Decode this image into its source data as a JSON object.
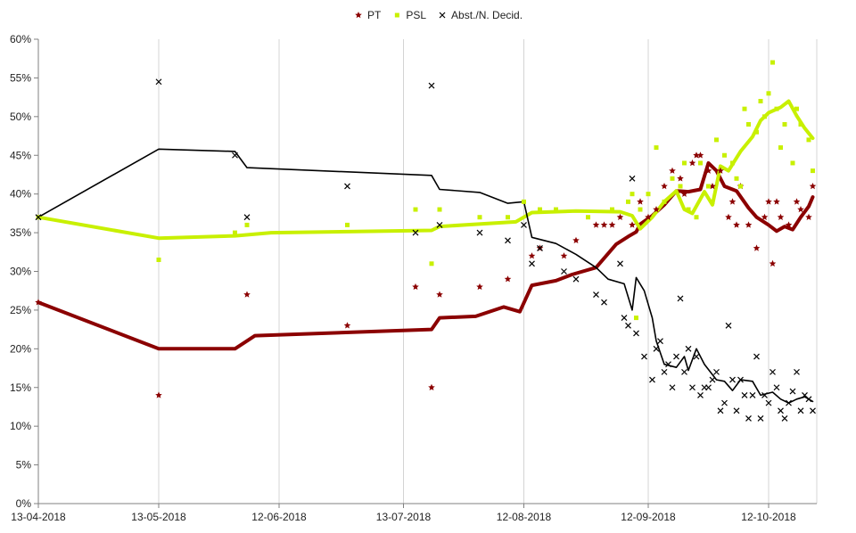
{
  "chart_data": {
    "type": "line",
    "x_axis": {
      "type": "date",
      "range": [
        "2018-04-13",
        "2018-10-24"
      ],
      "ticks": [
        {
          "date": "2018-04-13",
          "label": "13-04-2018"
        },
        {
          "date": "2018-05-13",
          "label": "13-05-2018"
        },
        {
          "date": "2018-06-12",
          "label": "12-06-2018"
        },
        {
          "date": "2018-07-13",
          "label": "13-07-2018"
        },
        {
          "date": "2018-08-12",
          "label": "12-08-2018"
        },
        {
          "date": "2018-09-12",
          "label": "12-09-2018"
        },
        {
          "date": "2018-10-12",
          "label": "12-10-2018"
        }
      ]
    },
    "y_axis": {
      "range": [
        0,
        60
      ],
      "ticks": [
        0,
        5,
        10,
        15,
        20,
        25,
        30,
        35,
        40,
        45,
        50,
        55,
        60
      ],
      "tick_labels": [
        "0%",
        "5%",
        "10%",
        "15%",
        "20%",
        "25%",
        "30%",
        "35%",
        "40%",
        "45%",
        "50%",
        "55%",
        "60%"
      ]
    },
    "grid": "vertical",
    "legend": "top-center",
    "series": [
      {
        "name": "PT",
        "color": "#8b0000",
        "marker": "star",
        "trend": [
          [
            "2018-04-13",
            26
          ],
          [
            "2018-05-13",
            20
          ],
          [
            "2018-06-01",
            20
          ],
          [
            "2018-06-06",
            21.7
          ],
          [
            "2018-07-20",
            22.5
          ],
          [
            "2018-07-22",
            24
          ],
          [
            "2018-07-31",
            24.2
          ],
          [
            "2018-08-07",
            25.4
          ],
          [
            "2018-08-11",
            24.8
          ],
          [
            "2018-08-14",
            28.2
          ],
          [
            "2018-08-20",
            28.8
          ],
          [
            "2018-08-24",
            29.6
          ],
          [
            "2018-08-30",
            30.5
          ],
          [
            "2018-09-04",
            33.5
          ],
          [
            "2018-09-07",
            34.5
          ],
          [
            "2018-09-09",
            35.1
          ],
          [
            "2018-09-10",
            36.1
          ],
          [
            "2018-09-13",
            37.2
          ],
          [
            "2018-09-16",
            38.6
          ],
          [
            "2018-09-19",
            40.4
          ],
          [
            "2018-09-22",
            40.3
          ],
          [
            "2018-09-25",
            40.6
          ],
          [
            "2018-09-27",
            44.0
          ],
          [
            "2018-09-29",
            43.0
          ],
          [
            "2018-10-01",
            41.0
          ],
          [
            "2018-10-04",
            40.4
          ],
          [
            "2018-10-07",
            38.2
          ],
          [
            "2018-10-09",
            37.0
          ],
          [
            "2018-10-12",
            36.0
          ],
          [
            "2018-10-14",
            35.2
          ],
          [
            "2018-10-16",
            35.8
          ],
          [
            "2018-10-18",
            35.4
          ],
          [
            "2018-10-20",
            37.0
          ],
          [
            "2018-10-22",
            38.4
          ],
          [
            "2018-10-23",
            39.6
          ]
        ],
        "points": [
          [
            "2018-04-13",
            26
          ],
          [
            "2018-05-13",
            14
          ],
          [
            "2018-06-04",
            27
          ],
          [
            "2018-06-29",
            23
          ],
          [
            "2018-07-16",
            28
          ],
          [
            "2018-07-20",
            15
          ],
          [
            "2018-07-22",
            27
          ],
          [
            "2018-08-01",
            28
          ],
          [
            "2018-08-08",
            29
          ],
          [
            "2018-08-14",
            32
          ],
          [
            "2018-08-16",
            33
          ],
          [
            "2018-08-22",
            32
          ],
          [
            "2018-08-25",
            34
          ],
          [
            "2018-08-30",
            36
          ],
          [
            "2018-09-01",
            36
          ],
          [
            "2018-09-03",
            36
          ],
          [
            "2018-09-05",
            37
          ],
          [
            "2018-09-08",
            36
          ],
          [
            "2018-09-10",
            39
          ],
          [
            "2018-09-12",
            37
          ],
          [
            "2018-09-14",
            38
          ],
          [
            "2018-09-16",
            41
          ],
          [
            "2018-09-18",
            43
          ],
          [
            "2018-09-20",
            42
          ],
          [
            "2018-09-21",
            40
          ],
          [
            "2018-09-23",
            44
          ],
          [
            "2018-09-24",
            45
          ],
          [
            "2018-09-25",
            45
          ],
          [
            "2018-09-27",
            43
          ],
          [
            "2018-09-28",
            41
          ],
          [
            "2018-09-30",
            43
          ],
          [
            "2018-10-02",
            37
          ],
          [
            "2018-10-03",
            39
          ],
          [
            "2018-10-04",
            36
          ],
          [
            "2018-10-05",
            41
          ],
          [
            "2018-10-07",
            36
          ],
          [
            "2018-10-09",
            33
          ],
          [
            "2018-10-11",
            37
          ],
          [
            "2018-10-12",
            39
          ],
          [
            "2018-10-13",
            31
          ],
          [
            "2018-10-14",
            39
          ],
          [
            "2018-10-15",
            37
          ],
          [
            "2018-10-17",
            36
          ],
          [
            "2018-10-19",
            39
          ],
          [
            "2018-10-20",
            38
          ],
          [
            "2018-10-22",
            37
          ],
          [
            "2018-10-23",
            41
          ]
        ]
      },
      {
        "name": "PSL",
        "color": "#c8f000",
        "marker": "square",
        "trend": [
          [
            "2018-04-13",
            37
          ],
          [
            "2018-05-13",
            34.3
          ],
          [
            "2018-06-01",
            34.6
          ],
          [
            "2018-06-10",
            35.0
          ],
          [
            "2018-07-20",
            35.3
          ],
          [
            "2018-07-22",
            35.8
          ],
          [
            "2018-08-10",
            36.4
          ],
          [
            "2018-08-14",
            37.6
          ],
          [
            "2018-08-25",
            37.8
          ],
          [
            "2018-09-05",
            37.7
          ],
          [
            "2018-09-08",
            37.2
          ],
          [
            "2018-09-10",
            35.5
          ],
          [
            "2018-09-13",
            37.0
          ],
          [
            "2018-09-16",
            39.0
          ],
          [
            "2018-09-19",
            40.4
          ],
          [
            "2018-09-21",
            38.0
          ],
          [
            "2018-09-23",
            37.5
          ],
          [
            "2018-09-26",
            40.3
          ],
          [
            "2018-09-28",
            38.6
          ],
          [
            "2018-09-30",
            43.6
          ],
          [
            "2018-10-02",
            43.0
          ],
          [
            "2018-10-05",
            45.5
          ],
          [
            "2018-10-08",
            47.4
          ],
          [
            "2018-10-10",
            49.5
          ],
          [
            "2018-10-12",
            50.5
          ],
          [
            "2018-10-15",
            51.2
          ],
          [
            "2018-10-17",
            52.0
          ],
          [
            "2018-10-19",
            50.1
          ],
          [
            "2018-10-21",
            48.5
          ],
          [
            "2018-10-23",
            47.2
          ]
        ],
        "points": [
          [
            "2018-04-13",
            37
          ],
          [
            "2018-05-13",
            31.5
          ],
          [
            "2018-06-01",
            35
          ],
          [
            "2018-06-04",
            36
          ],
          [
            "2018-06-29",
            36
          ],
          [
            "2018-07-16",
            38
          ],
          [
            "2018-07-20",
            31
          ],
          [
            "2018-07-22",
            38
          ],
          [
            "2018-08-01",
            37
          ],
          [
            "2018-08-08",
            37
          ],
          [
            "2018-08-12",
            39
          ],
          [
            "2018-08-16",
            38
          ],
          [
            "2018-08-20",
            38
          ],
          [
            "2018-08-28",
            37
          ],
          [
            "2018-09-03",
            38
          ],
          [
            "2018-09-07",
            39
          ],
          [
            "2018-09-08",
            40
          ],
          [
            "2018-09-09",
            24
          ],
          [
            "2018-09-10",
            38
          ],
          [
            "2018-09-12",
            40
          ],
          [
            "2018-09-14",
            46
          ],
          [
            "2018-09-16",
            39
          ],
          [
            "2018-09-18",
            42
          ],
          [
            "2018-09-20",
            41
          ],
          [
            "2018-09-21",
            44
          ],
          [
            "2018-09-22",
            38
          ],
          [
            "2018-09-24",
            37
          ],
          [
            "2018-09-25",
            44
          ],
          [
            "2018-09-27",
            41
          ],
          [
            "2018-09-28",
            39
          ],
          [
            "2018-09-29",
            47
          ],
          [
            "2018-10-01",
            45
          ],
          [
            "2018-10-03",
            44
          ],
          [
            "2018-10-04",
            42
          ],
          [
            "2018-10-05",
            41
          ],
          [
            "2018-10-06",
            51
          ],
          [
            "2018-10-07",
            49
          ],
          [
            "2018-10-09",
            48
          ],
          [
            "2018-10-10",
            52
          ],
          [
            "2018-10-11",
            50
          ],
          [
            "2018-10-12",
            53
          ],
          [
            "2018-10-13",
            57
          ],
          [
            "2018-10-14",
            51
          ],
          [
            "2018-10-15",
            46
          ],
          [
            "2018-10-16",
            49
          ],
          [
            "2018-10-18",
            44
          ],
          [
            "2018-10-19",
            51
          ],
          [
            "2018-10-20",
            49
          ],
          [
            "2018-10-22",
            47
          ],
          [
            "2018-10-23",
            43
          ]
        ]
      },
      {
        "name": "Abst./N. Decid.",
        "color": "#000000",
        "marker": "x",
        "trend": [
          [
            "2018-04-13",
            37
          ],
          [
            "2018-05-13",
            45.8
          ],
          [
            "2018-06-01",
            45.5
          ],
          [
            "2018-06-04",
            43.4
          ],
          [
            "2018-07-20",
            42.4
          ],
          [
            "2018-07-22",
            40.6
          ],
          [
            "2018-08-01",
            40.2
          ],
          [
            "2018-08-08",
            38.8
          ],
          [
            "2018-08-12",
            39.0
          ],
          [
            "2018-08-14",
            34.4
          ],
          [
            "2018-08-20",
            33.6
          ],
          [
            "2018-08-25",
            32.2
          ],
          [
            "2018-08-30",
            30.5
          ],
          [
            "2018-09-02",
            29.0
          ],
          [
            "2018-09-06",
            28.4
          ],
          [
            "2018-09-08",
            25.0
          ],
          [
            "2018-09-09",
            29.2
          ],
          [
            "2018-09-11",
            27.5
          ],
          [
            "2018-09-13",
            24.0
          ],
          [
            "2018-09-14",
            21.0
          ],
          [
            "2018-09-16",
            18.0
          ],
          [
            "2018-09-19",
            17.6
          ],
          [
            "2018-09-21",
            19.0
          ],
          [
            "2018-09-22",
            17.2
          ],
          [
            "2018-09-24",
            20.0
          ],
          [
            "2018-09-26",
            18.0
          ],
          [
            "2018-09-29",
            16.0
          ],
          [
            "2018-10-01",
            15.8
          ],
          [
            "2018-10-03",
            14.6
          ],
          [
            "2018-10-05",
            16.0
          ],
          [
            "2018-10-08",
            15.8
          ],
          [
            "2018-10-10",
            14.0
          ],
          [
            "2018-10-13",
            14.4
          ],
          [
            "2018-10-15",
            13.5
          ],
          [
            "2018-10-17",
            13.0
          ],
          [
            "2018-10-19",
            13.5
          ],
          [
            "2018-10-21",
            13.8
          ],
          [
            "2018-10-23",
            13.2
          ]
        ],
        "points": [
          [
            "2018-04-13",
            37
          ],
          [
            "2018-05-13",
            54.5
          ],
          [
            "2018-06-01",
            45
          ],
          [
            "2018-06-04",
            37
          ],
          [
            "2018-06-29",
            41
          ],
          [
            "2018-07-16",
            35
          ],
          [
            "2018-07-20",
            54
          ],
          [
            "2018-07-22",
            36
          ],
          [
            "2018-08-01",
            35
          ],
          [
            "2018-08-08",
            34
          ],
          [
            "2018-08-12",
            36
          ],
          [
            "2018-08-14",
            31
          ],
          [
            "2018-08-16",
            33
          ],
          [
            "2018-08-22",
            30
          ],
          [
            "2018-08-25",
            29
          ],
          [
            "2018-08-30",
            27
          ],
          [
            "2018-09-01",
            26
          ],
          [
            "2018-09-05",
            31
          ],
          [
            "2018-09-06",
            24
          ],
          [
            "2018-09-07",
            23
          ],
          [
            "2018-09-08",
            42
          ],
          [
            "2018-09-09",
            22
          ],
          [
            "2018-09-11",
            19
          ],
          [
            "2018-09-13",
            16
          ],
          [
            "2018-09-14",
            20
          ],
          [
            "2018-09-15",
            21
          ],
          [
            "2018-09-16",
            17
          ],
          [
            "2018-09-17",
            18
          ],
          [
            "2018-09-18",
            15
          ],
          [
            "2018-09-19",
            19
          ],
          [
            "2018-09-20",
            26.5
          ],
          [
            "2018-09-21",
            17
          ],
          [
            "2018-09-22",
            20
          ],
          [
            "2018-09-23",
            15
          ],
          [
            "2018-09-24",
            19
          ],
          [
            "2018-09-25",
            14
          ],
          [
            "2018-09-26",
            15
          ],
          [
            "2018-09-27",
            15
          ],
          [
            "2018-09-28",
            16
          ],
          [
            "2018-09-29",
            17
          ],
          [
            "2018-09-30",
            12
          ],
          [
            "2018-10-01",
            13
          ],
          [
            "2018-10-02",
            23
          ],
          [
            "2018-10-03",
            16
          ],
          [
            "2018-10-04",
            12
          ],
          [
            "2018-10-05",
            16
          ],
          [
            "2018-10-06",
            14
          ],
          [
            "2018-10-07",
            11
          ],
          [
            "2018-10-08",
            14
          ],
          [
            "2018-10-09",
            19
          ],
          [
            "2018-10-10",
            11
          ],
          [
            "2018-10-11",
            14
          ],
          [
            "2018-10-12",
            13
          ],
          [
            "2018-10-13",
            17
          ],
          [
            "2018-10-14",
            15
          ],
          [
            "2018-10-15",
            12
          ],
          [
            "2018-10-16",
            11
          ],
          [
            "2018-10-17",
            13
          ],
          [
            "2018-10-18",
            14.5
          ],
          [
            "2018-10-19",
            17
          ],
          [
            "2018-10-20",
            12
          ],
          [
            "2018-10-21",
            14
          ],
          [
            "2018-10-22",
            13.5
          ],
          [
            "2018-10-23",
            12
          ]
        ]
      }
    ]
  }
}
